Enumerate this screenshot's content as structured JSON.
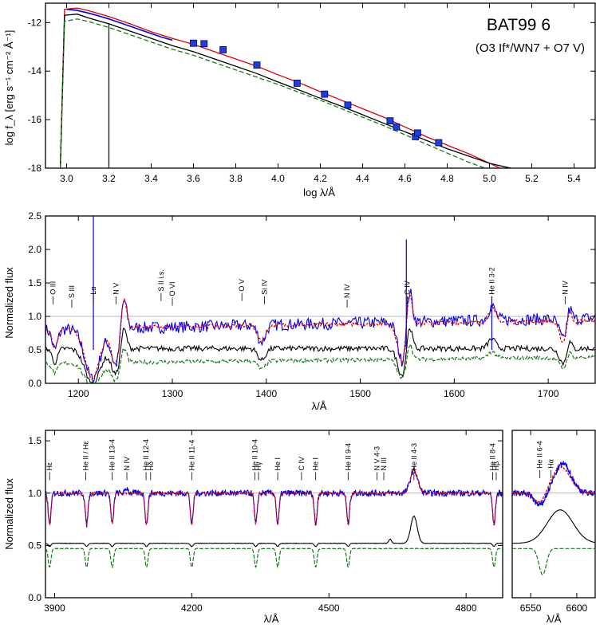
{
  "chart_data": [
    {
      "type": "line",
      "panel": "SED",
      "title": "BAT99 6",
      "subtitle": "(O3 If*/WN7 + O7 V)",
      "xlabel": "log λ/Å",
      "ylabel": "log f_λ [erg s⁻¹ cm⁻² Å⁻¹]",
      "xlim": [
        2.9,
        5.5
      ],
      "ylim": [
        -18,
        -11.2
      ],
      "xticks": [
        "3.0",
        "3.2",
        "3.4",
        "3.6",
        "3.8",
        "4.0",
        "4.2",
        "4.4",
        "4.6",
        "4.8",
        "5.0",
        "5.2",
        "5.4"
      ],
      "yticks": [
        "-12",
        "-14",
        "-16",
        "-18"
      ],
      "series": [
        {
          "color": "#e00000",
          "style": "solid",
          "x": [
            2.97,
            2.99,
            3.05,
            3.1,
            3.2,
            3.3,
            3.4,
            3.5,
            3.6,
            3.7,
            3.8,
            3.9,
            4.0,
            4.1,
            4.2,
            4.3,
            4.4,
            4.5,
            4.6,
            4.7,
            4.8,
            4.9,
            5.0,
            5.05
          ],
          "y": [
            -18,
            -11.45,
            -11.4,
            -11.5,
            -11.75,
            -12.05,
            -12.38,
            -12.65,
            -12.9,
            -13.2,
            -13.5,
            -13.8,
            -14.15,
            -14.48,
            -14.85,
            -15.2,
            -15.55,
            -15.9,
            -16.3,
            -16.7,
            -17.05,
            -17.4,
            -17.8,
            -18
          ]
        },
        {
          "color": "#000000",
          "style": "solid",
          "x": [
            2.97,
            2.99,
            3.05,
            3.1,
            3.2,
            3.3,
            3.4,
            3.5,
            3.6,
            3.7,
            3.8,
            3.9,
            4.0,
            4.1,
            4.2,
            4.3,
            4.4,
            4.5,
            4.6,
            4.7,
            4.8,
            4.9,
            5.0,
            5.1,
            5.13
          ],
          "y": [
            -18,
            -11.7,
            -11.65,
            -11.8,
            -12.05,
            -12.35,
            -12.65,
            -12.95,
            -13.2,
            -13.5,
            -13.8,
            -14.1,
            -14.45,
            -14.78,
            -15.12,
            -15.45,
            -15.8,
            -16.15,
            -16.5,
            -16.85,
            -17.2,
            -17.5,
            -17.8,
            -18.0,
            -18.05
          ]
        },
        {
          "color": "#1a7a1a",
          "style": "dashed",
          "x": [
            2.97,
            2.99,
            3.05,
            3.1,
            3.2,
            3.3,
            3.4,
            3.5,
            3.6,
            3.7,
            3.8,
            3.9,
            4.0,
            4.1,
            4.2,
            4.3,
            4.4,
            4.5,
            4.6,
            4.7,
            4.8,
            4.9,
            4.98
          ],
          "y": [
            -18,
            -11.95,
            -11.85,
            -11.95,
            -12.2,
            -12.5,
            -12.8,
            -13.1,
            -13.35,
            -13.65,
            -13.95,
            -14.25,
            -14.55,
            -14.88,
            -15.2,
            -15.55,
            -15.9,
            -16.25,
            -16.62,
            -17.0,
            -17.38,
            -17.75,
            -18
          ]
        },
        {
          "color": "#0000ee",
          "style": "solid",
          "x": [
            3.0,
            3.05,
            3.1,
            3.15,
            3.2,
            3.25,
            3.3,
            3.35,
            3.4,
            3.45,
            3.5
          ],
          "y": [
            -11.45,
            -11.5,
            -11.6,
            -11.72,
            -11.85,
            -12.0,
            -12.15,
            -12.3,
            -12.45,
            -12.6,
            -12.72
          ]
        }
      ],
      "photometry": {
        "color": "#1f3fd8",
        "x": [
          3.6,
          3.65,
          3.74,
          3.9,
          4.09,
          4.22,
          4.33,
          4.53,
          4.56,
          4.65,
          4.66,
          4.76
        ],
        "y": [
          -12.85,
          -12.87,
          -13.12,
          -13.75,
          -14.5,
          -14.95,
          -15.4,
          -16.05,
          -16.3,
          -16.7,
          -16.55,
          -16.95
        ]
      }
    },
    {
      "type": "line",
      "panel": "UV",
      "xlabel": "λ/Å",
      "ylabel": "Normalized flux",
      "xlim": [
        1165,
        1750
      ],
      "ylim": [
        0,
        2.5
      ],
      "xticks": [
        "1200",
        "1300",
        "1400",
        "1500",
        "1600",
        "1700"
      ],
      "yticks": [
        "0.0",
        "0.5",
        "1.0",
        "1.5",
        "2.0",
        "2.5"
      ],
      "line_labels": [
        "O III",
        "S III",
        "Lα",
        "N V",
        "S II i.s.",
        "O VI",
        "O V",
        "Si IV",
        "N IV",
        "C IV",
        "He II 3-2",
        "N IV"
      ],
      "series_colors": [
        "#0000ee",
        "#e00000",
        "#000000",
        "#1a7a1a"
      ]
    },
    {
      "type": "line",
      "panel": "Optical",
      "xlabel": "λ/Å",
      "ylabel": "Normalized flux",
      "xlim": [
        3880,
        4880
      ],
      "ylim": [
        0,
        1.6
      ],
      "xticks": [
        "3900",
        "4200",
        "4500",
        "4800"
      ],
      "yticks": [
        "0.0",
        "0.5",
        "1.0",
        "1.5"
      ],
      "line_labels": [
        "Hε",
        "He II / Hε",
        "He II 13-4",
        "N IV",
        "He II 12-4",
        "Hδ",
        "He II 11-4",
        "He II 10-4",
        "Hγ",
        "He I",
        "C IV",
        "He I",
        "He II 9-4",
        "N V 4-3",
        "N III",
        "He II 4-3",
        "He II 8-4",
        "Hβ"
      ],
      "series_colors": [
        "#0000ee",
        "#e00000",
        "#000000",
        "#1a7a1a"
      ]
    },
    {
      "type": "line",
      "panel": "Halpha",
      "xlabel": "λ/Å",
      "xlim": [
        6530,
        6620
      ],
      "ylim": [
        0,
        1.6
      ],
      "xticks": [
        "6550",
        "6600"
      ],
      "line_labels": [
        "He II 6-4",
        "Hα"
      ],
      "series_colors": [
        "#0000ee",
        "#e00000",
        "#000000",
        "#1a7a1a"
      ]
    }
  ]
}
